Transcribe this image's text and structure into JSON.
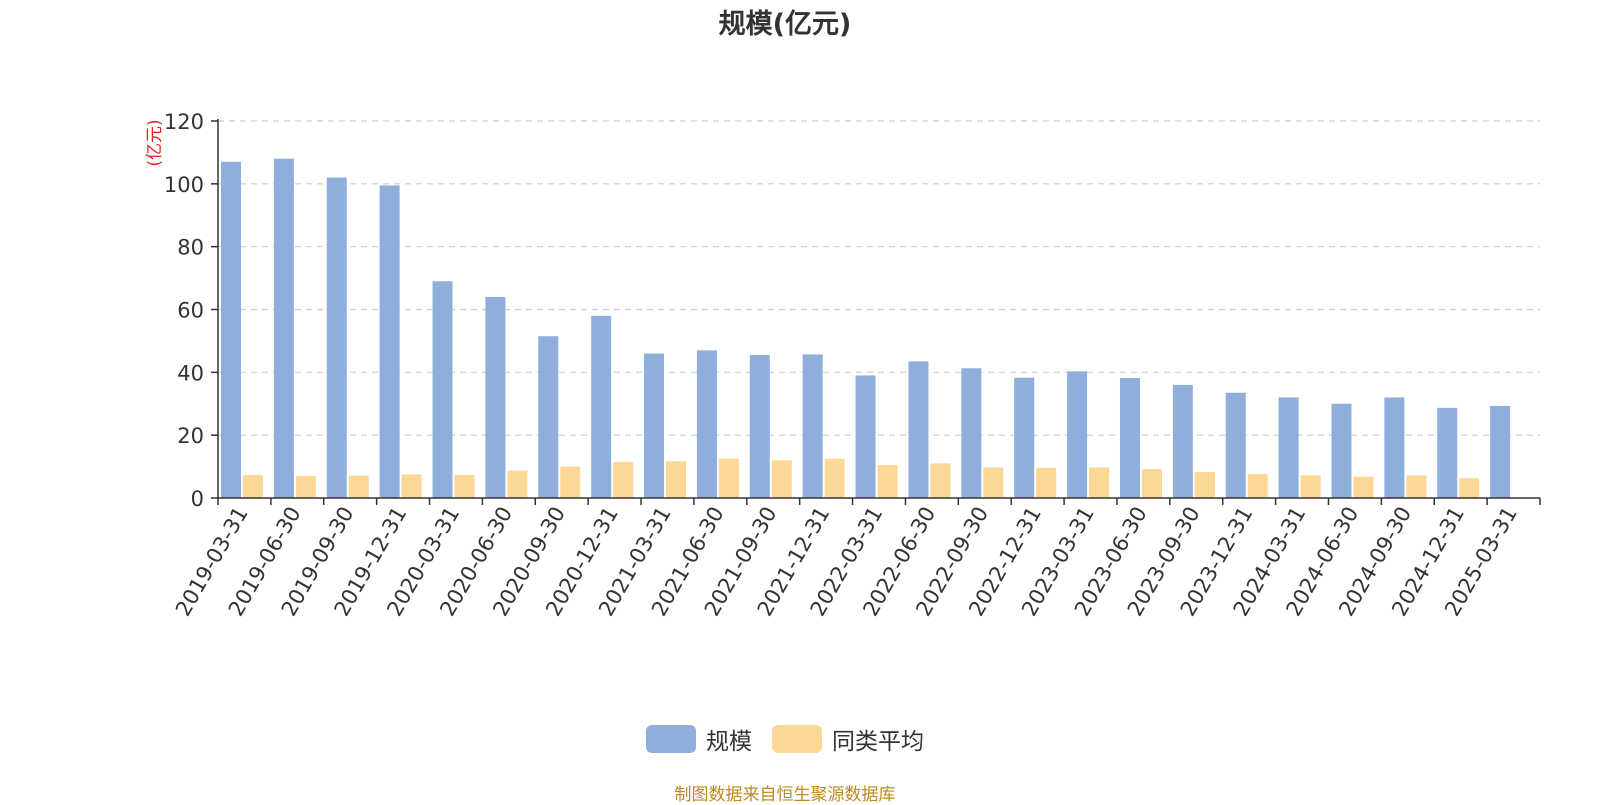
{
  "chart_data": {
    "type": "bar",
    "title": "规模(亿元)",
    "unit_label": "(亿元)",
    "ylim": [
      0,
      120
    ],
    "yticks": [
      0,
      20,
      40,
      60,
      80,
      100,
      120
    ],
    "grid": true,
    "legend_position": "bottom",
    "categories": [
      "2019-03-31",
      "2019-06-30",
      "2019-09-30",
      "2019-12-31",
      "2020-03-31",
      "2020-06-30",
      "2020-09-30",
      "2020-12-31",
      "2021-03-31",
      "2021-06-30",
      "2021-09-30",
      "2021-12-31",
      "2022-03-31",
      "2022-06-30",
      "2022-09-30",
      "2022-12-31",
      "2023-03-31",
      "2023-06-30",
      "2023-09-30",
      "2023-12-31",
      "2024-03-31",
      "2024-06-30",
      "2024-09-30",
      "2024-12-31",
      "2025-03-31"
    ],
    "series": [
      {
        "name": "规模",
        "color": "#8eaedb",
        "values": [
          107.0,
          108.0,
          102.0,
          99.5,
          69.0,
          64.0,
          51.5,
          58.0,
          46.0,
          47.0,
          45.5,
          45.7,
          39.0,
          43.5,
          41.3,
          38.3,
          40.3,
          38.2,
          36.0,
          33.5,
          32.0,
          30.0,
          32.0,
          28.7,
          29.3
        ]
      },
      {
        "name": "同类平均",
        "color": "#fdd795",
        "values": [
          7.3,
          7.0,
          7.1,
          7.5,
          7.3,
          8.7,
          10.0,
          11.5,
          11.7,
          12.5,
          12.0,
          12.5,
          10.5,
          11.0,
          9.7,
          9.6,
          9.7,
          9.2,
          8.3,
          7.6,
          7.2,
          6.8,
          7.2,
          6.3,
          null
        ]
      }
    ]
  },
  "source_note": "制图数据来自恒生聚源数据库"
}
